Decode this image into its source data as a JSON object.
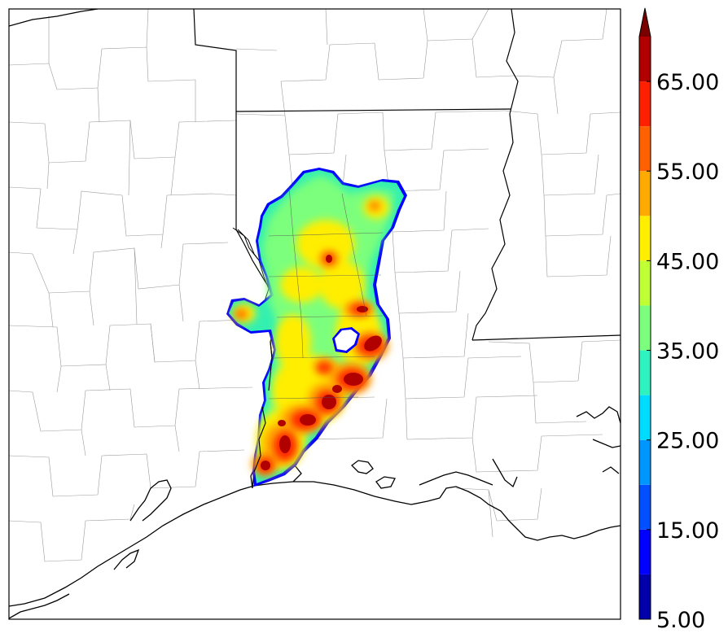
{
  "colorbar": {
    "tick_labels": [
      "5.00",
      "15.00",
      "25.00",
      "35.00",
      "45.00",
      "55.00",
      "65.00"
    ],
    "tick_values": [
      5,
      15,
      25,
      35,
      45,
      55,
      65
    ],
    "bins": [
      {
        "from": 5,
        "to": 10,
        "color": "#0000aa"
      },
      {
        "from": 10,
        "to": 15,
        "color": "#0000ff"
      },
      {
        "from": 15,
        "to": 20,
        "color": "#0050ff"
      },
      {
        "from": 20,
        "to": 25,
        "color": "#0096ff"
      },
      {
        "from": 25,
        "to": 30,
        "color": "#00dcff"
      },
      {
        "from": 30,
        "to": 35,
        "color": "#2ef2c0"
      },
      {
        "from": 35,
        "to": 40,
        "color": "#7cff7c"
      },
      {
        "from": 40,
        "to": 45,
        "color": "#c0ff34"
      },
      {
        "from": 45,
        "to": 50,
        "color": "#ffee00"
      },
      {
        "from": 50,
        "to": 55,
        "color": "#ffaa00"
      },
      {
        "from": 55,
        "to": 60,
        "color": "#ff6000"
      },
      {
        "from": 60,
        "to": 65,
        "color": "#ff2000"
      },
      {
        "from": 65,
        "to": 70,
        "color": "#b00000"
      }
    ],
    "extend_color": "#7a0000",
    "extend": "max"
  },
  "map": {
    "colors": {
      "state_border": "#000000",
      "county_border": "#9a9a9a",
      "coast": "#000000",
      "background": "#ffffff"
    }
  }
}
